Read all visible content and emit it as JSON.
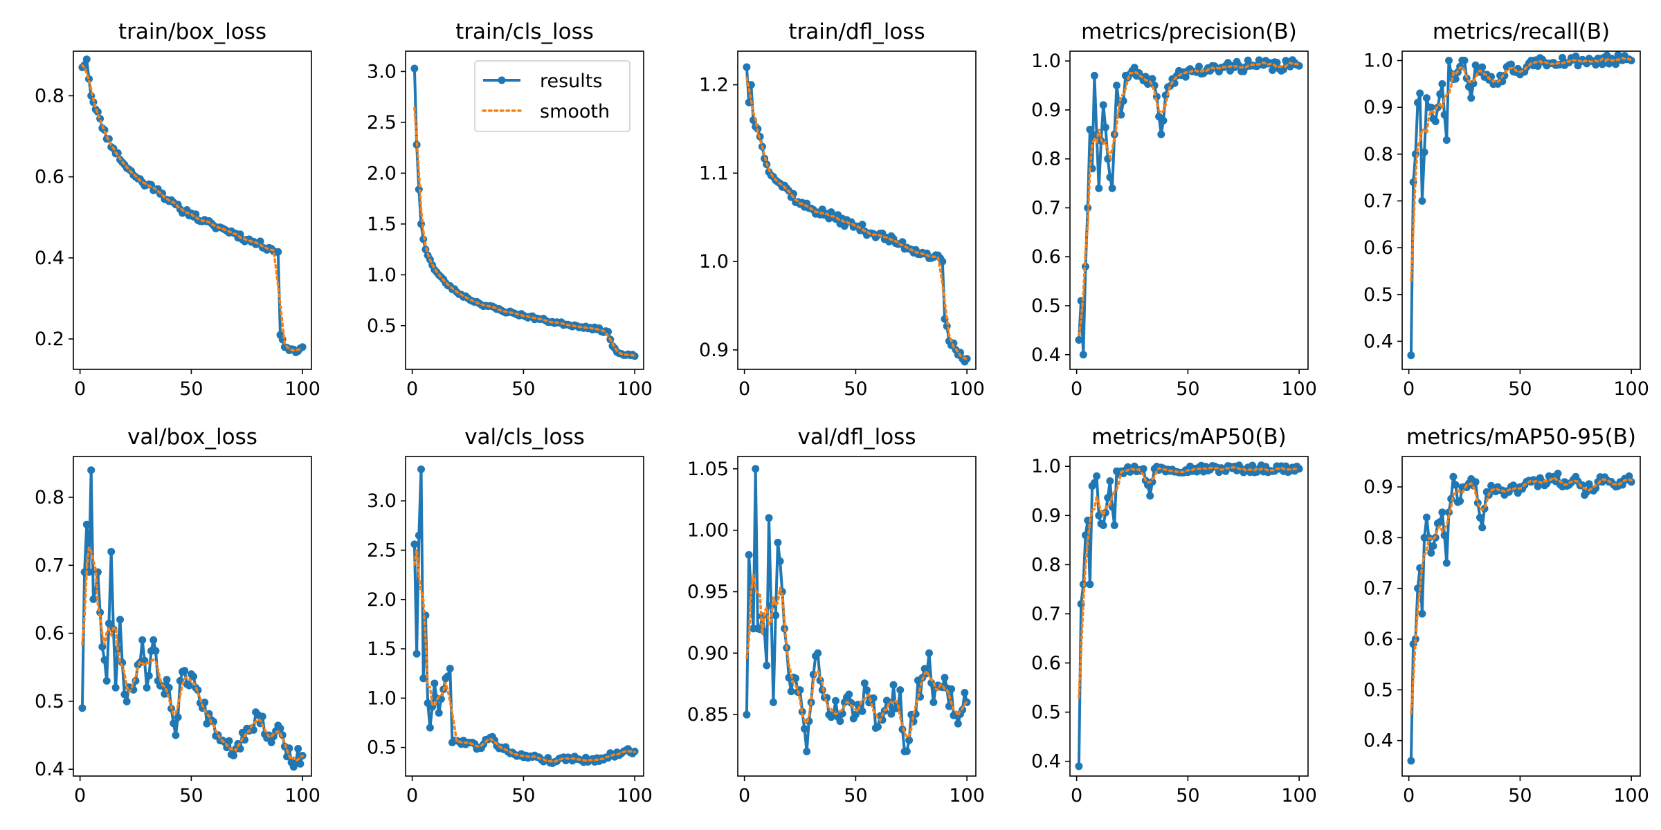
{
  "colors": {
    "results": "#1f77b4",
    "smooth": "#ff7f0e",
    "axes": "#000000"
  },
  "legend": {
    "placement": "top-right of panel 2",
    "results_label": "results",
    "smooth_label": "smooth"
  },
  "chart_data": [
    {
      "type": "line",
      "title": "train/box_loss",
      "xlabel": "",
      "ylabel": "",
      "xlim": [
        -3,
        104
      ],
      "ylim": [
        0.125,
        0.91
      ],
      "x_ticks": [
        0,
        50,
        100
      ],
      "y_ticks": [
        0.2,
        0.4,
        0.6,
        0.8
      ],
      "grid": false,
      "anchors": [
        [
          1,
          0.87
        ],
        [
          3,
          0.89
        ],
        [
          5,
          0.8
        ],
        [
          8,
          0.76
        ],
        [
          10,
          0.72
        ],
        [
          15,
          0.67
        ],
        [
          20,
          0.63
        ],
        [
          25,
          0.6
        ],
        [
          30,
          0.58
        ],
        [
          35,
          0.57
        ],
        [
          40,
          0.54
        ],
        [
          45,
          0.52
        ],
        [
          50,
          0.51
        ],
        [
          55,
          0.49
        ],
        [
          60,
          0.48
        ],
        [
          65,
          0.47
        ],
        [
          70,
          0.46
        ],
        [
          75,
          0.445
        ],
        [
          80,
          0.435
        ],
        [
          85,
          0.425
        ],
        [
          89,
          0.415
        ],
        [
          90,
          0.21
        ],
        [
          92,
          0.18
        ],
        [
          95,
          0.175
        ],
        [
          98,
          0.17
        ],
        [
          100,
          0.18
        ]
      ],
      "noise": 0.008,
      "seed": 11
    },
    {
      "type": "line",
      "title": "train/cls_loss",
      "xlabel": "",
      "ylabel": "",
      "xlim": [
        -3,
        104
      ],
      "ylim": [
        0.07,
        3.2
      ],
      "x_ticks": [
        0,
        50,
        100
      ],
      "y_ticks": [
        0.5,
        1.0,
        1.5,
        2.0,
        2.5,
        3.0
      ],
      "grid": false,
      "legend": true,
      "anchors": [
        [
          1,
          3.03
        ],
        [
          2,
          2.28
        ],
        [
          3,
          1.84
        ],
        [
          4,
          1.5
        ],
        [
          5,
          1.35
        ],
        [
          6,
          1.25
        ],
        [
          8,
          1.15
        ],
        [
          10,
          1.05
        ],
        [
          15,
          0.92
        ],
        [
          20,
          0.83
        ],
        [
          25,
          0.77
        ],
        [
          30,
          0.72
        ],
        [
          40,
          0.65
        ],
        [
          50,
          0.6
        ],
        [
          60,
          0.55
        ],
        [
          70,
          0.51
        ],
        [
          80,
          0.48
        ],
        [
          88,
          0.44
        ],
        [
          90,
          0.3
        ],
        [
          92,
          0.24
        ],
        [
          95,
          0.21
        ],
        [
          100,
          0.2
        ]
      ],
      "noise": 0.015,
      "seed": 23
    },
    {
      "type": "line",
      "title": "train/dfl_loss",
      "xlabel": "",
      "ylabel": "",
      "xlim": [
        -3,
        104
      ],
      "ylim": [
        0.878,
        1.238
      ],
      "x_ticks": [
        0,
        50,
        100
      ],
      "y_ticks": [
        0.9,
        1.0,
        1.1,
        1.2
      ],
      "grid": false,
      "anchors": [
        [
          1,
          1.22
        ],
        [
          2,
          1.18
        ],
        [
          3,
          1.2
        ],
        [
          4,
          1.16
        ],
        [
          6,
          1.15
        ],
        [
          8,
          1.13
        ],
        [
          10,
          1.11
        ],
        [
          15,
          1.09
        ],
        [
          20,
          1.08
        ],
        [
          25,
          1.065
        ],
        [
          30,
          1.06
        ],
        [
          40,
          1.05
        ],
        [
          50,
          1.04
        ],
        [
          60,
          1.03
        ],
        [
          70,
          1.02
        ],
        [
          80,
          1.01
        ],
        [
          85,
          1.005
        ],
        [
          89,
          1.0
        ],
        [
          90,
          0.935
        ],
        [
          92,
          0.91
        ],
        [
          95,
          0.9
        ],
        [
          98,
          0.89
        ],
        [
          100,
          0.89
        ]
      ],
      "noise": 0.005,
      "seed": 37
    },
    {
      "type": "line",
      "title": "metrics/precision(B)",
      "xlabel": "",
      "ylabel": "",
      "xlim": [
        -3,
        104
      ],
      "ylim": [
        0.37,
        1.02
      ],
      "x_ticks": [
        0,
        50,
        100
      ],
      "y_ticks": [
        0.4,
        0.5,
        0.6,
        0.7,
        0.8,
        0.9,
        1.0
      ],
      "grid": false,
      "anchors": [
        [
          1,
          0.43
        ],
        [
          2,
          0.51
        ],
        [
          3,
          0.4
        ],
        [
          4,
          0.58
        ],
        [
          5,
          0.7
        ],
        [
          6,
          0.86
        ],
        [
          7,
          0.78
        ],
        [
          8,
          0.97
        ],
        [
          10,
          0.74
        ],
        [
          12,
          0.91
        ],
        [
          14,
          0.8
        ],
        [
          16,
          0.74
        ],
        [
          18,
          0.95
        ],
        [
          20,
          0.89
        ],
        [
          22,
          0.97
        ],
        [
          25,
          0.98
        ],
        [
          30,
          0.96
        ],
        [
          35,
          0.95
        ],
        [
          38,
          0.85
        ],
        [
          40,
          0.93
        ],
        [
          45,
          0.97
        ],
        [
          50,
          0.98
        ],
        [
          60,
          0.98
        ],
        [
          70,
          0.99
        ],
        [
          80,
          0.99
        ],
        [
          100,
          0.99
        ]
      ],
      "noise": 0.012,
      "seed": 41
    },
    {
      "type": "line",
      "title": "metrics/recall(B)",
      "xlabel": "",
      "ylabel": "",
      "xlim": [
        -3,
        104
      ],
      "ylim": [
        0.34,
        1.02
      ],
      "x_ticks": [
        0,
        50,
        100
      ],
      "y_ticks": [
        0.4,
        0.5,
        0.6,
        0.7,
        0.8,
        0.9,
        1.0
      ],
      "grid": false,
      "anchors": [
        [
          1,
          0.37
        ],
        [
          2,
          0.74
        ],
        [
          3,
          0.8
        ],
        [
          4,
          0.91
        ],
        [
          5,
          0.93
        ],
        [
          6,
          0.7
        ],
        [
          8,
          0.92
        ],
        [
          10,
          0.9
        ],
        [
          12,
          0.87
        ],
        [
          15,
          0.95
        ],
        [
          17,
          0.83
        ],
        [
          18,
          1.0
        ],
        [
          20,
          0.96
        ],
        [
          25,
          1.0
        ],
        [
          28,
          0.92
        ],
        [
          30,
          0.99
        ],
        [
          35,
          0.97
        ],
        [
          40,
          0.95
        ],
        [
          45,
          0.99
        ],
        [
          50,
          0.97
        ],
        [
          55,
          1.0
        ],
        [
          100,
          1.0
        ]
      ],
      "noise": 0.012,
      "seed": 53
    },
    {
      "type": "line",
      "title": "val/box_loss",
      "xlabel": "",
      "ylabel": "",
      "xlim": [
        -3,
        104
      ],
      "ylim": [
        0.39,
        0.86
      ],
      "x_ticks": [
        0,
        50,
        100
      ],
      "y_ticks": [
        0.4,
        0.5,
        0.6,
        0.7,
        0.8
      ],
      "grid": false,
      "anchors": [
        [
          1,
          0.49
        ],
        [
          2,
          0.69
        ],
        [
          3,
          0.76
        ],
        [
          4,
          0.69
        ],
        [
          5,
          0.84
        ],
        [
          6,
          0.65
        ],
        [
          8,
          0.69
        ],
        [
          10,
          0.58
        ],
        [
          12,
          0.53
        ],
        [
          14,
          0.72
        ],
        [
          16,
          0.52
        ],
        [
          18,
          0.62
        ],
        [
          20,
          0.51
        ],
        [
          25,
          0.53
        ],
        [
          28,
          0.59
        ],
        [
          30,
          0.52
        ],
        [
          33,
          0.59
        ],
        [
          35,
          0.53
        ],
        [
          40,
          0.52
        ],
        [
          43,
          0.45
        ],
        [
          45,
          0.53
        ],
        [
          50,
          0.54
        ],
        [
          55,
          0.49
        ],
        [
          60,
          0.47
        ],
        [
          65,
          0.44
        ],
        [
          70,
          0.43
        ],
        [
          75,
          0.46
        ],
        [
          80,
          0.48
        ],
        [
          85,
          0.45
        ],
        [
          90,
          0.46
        ],
        [
          95,
          0.41
        ],
        [
          100,
          0.42
        ]
      ],
      "noise": 0.015,
      "seed": 67
    },
    {
      "type": "line",
      "title": "val/cls_loss",
      "xlabel": "",
      "ylabel": "",
      "xlim": [
        -3,
        104
      ],
      "ylim": [
        0.21,
        3.45
      ],
      "x_ticks": [
        0,
        50,
        100
      ],
      "y_ticks": [
        0.5,
        1.0,
        1.5,
        2.0,
        2.5,
        3.0
      ],
      "grid": false,
      "anchors": [
        [
          1,
          2.56
        ],
        [
          2,
          1.45
        ],
        [
          3,
          2.65
        ],
        [
          4,
          3.32
        ],
        [
          5,
          1.2
        ],
        [
          6,
          1.84
        ],
        [
          7,
          0.95
        ],
        [
          8,
          0.7
        ],
        [
          10,
          1.15
        ],
        [
          12,
          0.85
        ],
        [
          15,
          1.2
        ],
        [
          17,
          1.3
        ],
        [
          18,
          0.55
        ],
        [
          20,
          0.57
        ],
        [
          25,
          0.55
        ],
        [
          30,
          0.5
        ],
        [
          35,
          0.6
        ],
        [
          40,
          0.5
        ],
        [
          45,
          0.45
        ],
        [
          50,
          0.4
        ],
        [
          55,
          0.42
        ],
        [
          60,
          0.37
        ],
        [
          65,
          0.36
        ],
        [
          70,
          0.4
        ],
        [
          75,
          0.38
        ],
        [
          80,
          0.37
        ],
        [
          85,
          0.39
        ],
        [
          90,
          0.42
        ],
        [
          95,
          0.46
        ],
        [
          100,
          0.46
        ]
      ],
      "noise": 0.03,
      "seed": 79
    },
    {
      "type": "line",
      "title": "val/dfl_loss",
      "xlabel": "",
      "ylabel": "",
      "xlim": [
        -3,
        104
      ],
      "ylim": [
        0.8,
        1.06
      ],
      "x_ticks": [
        0,
        50,
        100
      ],
      "y_ticks": [
        0.85,
        0.9,
        0.95,
        1.0,
        1.05
      ],
      "grid": false,
      "anchors": [
        [
          1,
          0.85
        ],
        [
          2,
          0.98
        ],
        [
          3,
          0.95
        ],
        [
          4,
          0.92
        ],
        [
          5,
          1.05
        ],
        [
          6,
          0.92
        ],
        [
          8,
          0.93
        ],
        [
          10,
          0.89
        ],
        [
          11,
          1.01
        ],
        [
          13,
          0.86
        ],
        [
          15,
          0.99
        ],
        [
          17,
          0.95
        ],
        [
          18,
          0.92
        ],
        [
          20,
          0.88
        ],
        [
          25,
          0.87
        ],
        [
          28,
          0.82
        ],
        [
          30,
          0.86
        ],
        [
          33,
          0.9
        ],
        [
          35,
          0.87
        ],
        [
          40,
          0.85
        ],
        [
          45,
          0.86
        ],
        [
          50,
          0.85
        ],
        [
          55,
          0.87
        ],
        [
          60,
          0.84
        ],
        [
          65,
          0.86
        ],
        [
          70,
          0.87
        ],
        [
          72,
          0.82
        ],
        [
          75,
          0.85
        ],
        [
          80,
          0.88
        ],
        [
          83,
          0.9
        ],
        [
          85,
          0.86
        ],
        [
          90,
          0.88
        ],
        [
          95,
          0.85
        ],
        [
          100,
          0.86
        ]
      ],
      "noise": 0.012,
      "seed": 83
    },
    {
      "type": "line",
      "title": "metrics/mAP50(B)",
      "xlabel": "",
      "ylabel": "",
      "xlim": [
        -3,
        104
      ],
      "ylim": [
        0.37,
        1.02
      ],
      "x_ticks": [
        0,
        50,
        100
      ],
      "y_ticks": [
        0.4,
        0.5,
        0.6,
        0.7,
        0.8,
        0.9,
        1.0
      ],
      "grid": false,
      "anchors": [
        [
          1,
          0.39
        ],
        [
          2,
          0.72
        ],
        [
          3,
          0.76
        ],
        [
          4,
          0.86
        ],
        [
          5,
          0.89
        ],
        [
          6,
          0.76
        ],
        [
          7,
          0.96
        ],
        [
          9,
          0.98
        ],
        [
          10,
          0.9
        ],
        [
          12,
          0.88
        ],
        [
          15,
          0.97
        ],
        [
          17,
          0.88
        ],
        [
          18,
          0.99
        ],
        [
          20,
          0.99
        ],
        [
          25,
          0.995
        ],
        [
          30,
          0.995
        ],
        [
          33,
          0.94
        ],
        [
          35,
          0.995
        ],
        [
          100,
          0.995
        ]
      ],
      "noise": 0.008,
      "seed": 97
    },
    {
      "type": "line",
      "title": "metrics/mAP50-95(B)",
      "xlabel": "",
      "ylabel": "",
      "xlim": [
        -3,
        104
      ],
      "ylim": [
        0.33,
        0.96
      ],
      "x_ticks": [
        0,
        50,
        100
      ],
      "y_ticks": [
        0.4,
        0.5,
        0.6,
        0.7,
        0.8,
        0.9
      ],
      "grid": false,
      "anchors": [
        [
          1,
          0.36
        ],
        [
          2,
          0.59
        ],
        [
          3,
          0.6
        ],
        [
          4,
          0.7
        ],
        [
          5,
          0.74
        ],
        [
          6,
          0.65
        ],
        [
          7,
          0.8
        ],
        [
          8,
          0.84
        ],
        [
          10,
          0.77
        ],
        [
          12,
          0.8
        ],
        [
          15,
          0.85
        ],
        [
          17,
          0.75
        ],
        [
          18,
          0.85
        ],
        [
          20,
          0.92
        ],
        [
          22,
          0.87
        ],
        [
          25,
          0.9
        ],
        [
          30,
          0.91
        ],
        [
          33,
          0.82
        ],
        [
          35,
          0.89
        ],
        [
          40,
          0.9
        ],
        [
          45,
          0.89
        ],
        [
          50,
          0.9
        ],
        [
          55,
          0.91
        ],
        [
          60,
          0.91
        ],
        [
          65,
          0.92
        ],
        [
          70,
          0.91
        ],
        [
          75,
          0.92
        ],
        [
          80,
          0.89
        ],
        [
          85,
          0.91
        ],
        [
          90,
          0.91
        ],
        [
          95,
          0.91
        ],
        [
          100,
          0.91
        ]
      ],
      "noise": 0.012,
      "seed": 101
    }
  ]
}
